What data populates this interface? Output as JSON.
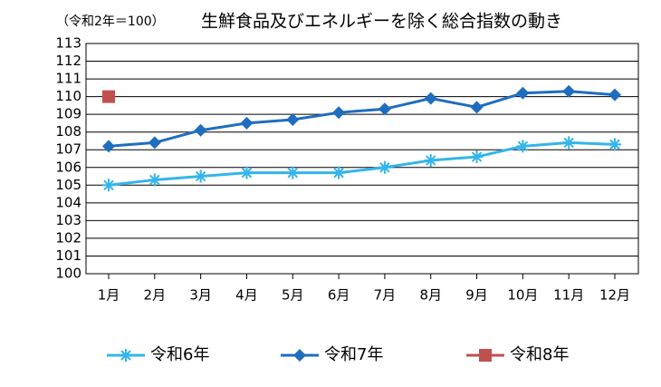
{
  "chart_data": {
    "type": "line",
    "note": "（令和2年＝100）",
    "title": "生鮮食品及びエネルギーを除く総合指数の動き",
    "categories": [
      "1月",
      "2月",
      "3月",
      "4月",
      "5月",
      "6月",
      "7月",
      "8月",
      "9月",
      "10月",
      "11月",
      "12月"
    ],
    "series": [
      {
        "name": "令和6年",
        "color": "#33b5ea",
        "marker": "asterisk",
        "values": [
          105.0,
          105.3,
          105.5,
          105.7,
          105.7,
          105.7,
          106.0,
          106.4,
          106.6,
          107.2,
          107.4,
          107.3
        ]
      },
      {
        "name": "令和7年",
        "color": "#1f6dbf",
        "marker": "diamond",
        "values": [
          107.2,
          107.4,
          108.1,
          108.5,
          108.7,
          109.1,
          109.3,
          109.9,
          109.4,
          110.2,
          110.3,
          110.1
        ]
      },
      {
        "name": "令和8年",
        "color": "#c0504d",
        "marker": "square",
        "values": [
          110.0,
          null,
          null,
          null,
          null,
          null,
          null,
          null,
          null,
          null,
          null,
          null
        ]
      }
    ],
    "ylim": [
      100,
      113
    ],
    "yticks": [
      100,
      101,
      102,
      103,
      104,
      105,
      106,
      107,
      108,
      109,
      110,
      111,
      112,
      113
    ],
    "grid": true,
    "legend": "bottom"
  }
}
